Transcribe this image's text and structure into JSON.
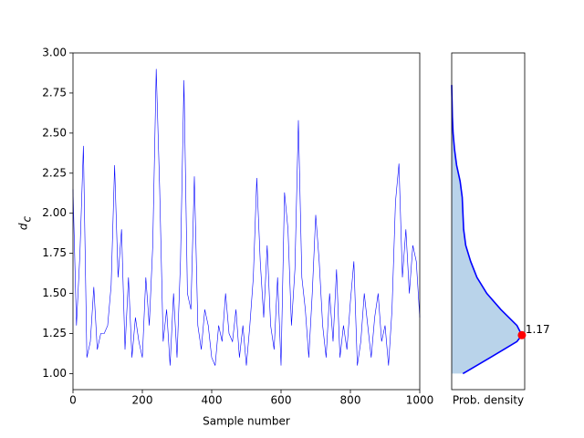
{
  "chart_data": [
    {
      "type": "line",
      "xlabel": "Sample number",
      "ylabel": "d",
      "ylabel_sub": "c",
      "color": "#0000ff",
      "xlim": [
        0,
        1000
      ],
      "xticks": [
        0,
        200,
        400,
        600,
        800,
        1000
      ],
      "ylim": [
        0.9,
        3.0
      ],
      "yticks": [
        {
          "value": 1,
          "label": "1.00"
        },
        {
          "value": 1.25,
          "label": "1.25"
        },
        {
          "value": 1.5,
          "label": "1.50"
        },
        {
          "value": 1.75,
          "label": "1.75"
        },
        {
          "value": 2,
          "label": "2.00"
        },
        {
          "value": 2.25,
          "label": "2.25"
        },
        {
          "value": 2.5,
          "label": "2.50"
        },
        {
          "value": 2.75,
          "label": "2.75"
        },
        {
          "value": 3,
          "label": "3.00"
        }
      ],
      "x": [
        0,
        10,
        20,
        30,
        40,
        50,
        60,
        70,
        80,
        90,
        100,
        110,
        120,
        130,
        140,
        150,
        160,
        170,
        180,
        190,
        200,
        210,
        220,
        230,
        240,
        250,
        260,
        270,
        280,
        290,
        300,
        310,
        320,
        330,
        340,
        350,
        360,
        370,
        380,
        390,
        400,
        410,
        420,
        430,
        440,
        450,
        460,
        470,
        480,
        490,
        500,
        510,
        520,
        530,
        540,
        550,
        560,
        570,
        580,
        590,
        600,
        610,
        620,
        630,
        640,
        650,
        660,
        670,
        680,
        690,
        700,
        710,
        720,
        730,
        740,
        750,
        760,
        770,
        780,
        790,
        800,
        810,
        820,
        830,
        840,
        850,
        860,
        870,
        880,
        890,
        900,
        910,
        920,
        930,
        940,
        950,
        960,
        970,
        980,
        990,
        1000
      ],
      "values": [
        2.15,
        1.3,
        1.75,
        2.42,
        1.1,
        1.2,
        1.54,
        1.15,
        1.25,
        1.25,
        1.3,
        1.55,
        2.3,
        1.6,
        1.9,
        1.15,
        1.6,
        1.1,
        1.35,
        1.2,
        1.1,
        1.6,
        1.3,
        1.8,
        2.9,
        2.15,
        1.2,
        1.4,
        1.05,
        1.5,
        1.1,
        1.7,
        2.83,
        1.5,
        1.4,
        2.23,
        1.3,
        1.15,
        1.4,
        1.3,
        1.1,
        1.05,
        1.3,
        1.2,
        1.5,
        1.25,
        1.2,
        1.4,
        1.1,
        1.3,
        1.05,
        1.3,
        1.6,
        2.22,
        1.7,
        1.35,
        1.8,
        1.3,
        1.15,
        1.6,
        1.05,
        2.13,
        1.9,
        1.3,
        1.65,
        2.58,
        1.6,
        1.4,
        1.1,
        1.5,
        1.99,
        1.7,
        1.3,
        1.1,
        1.5,
        1.2,
        1.65,
        1.1,
        1.3,
        1.15,
        1.45,
        1.7,
        1.05,
        1.2,
        1.5,
        1.3,
        1.1,
        1.35,
        1.5,
        1.2,
        1.3,
        1.05,
        1.4,
        2.07,
        2.31,
        1.6,
        1.9,
        1.5,
        1.8,
        1.7,
        1.35
      ]
    },
    {
      "type": "density",
      "xlabel": "Prob. density",
      "color": "#0000ff",
      "fill": "#b9d3ea",
      "xlim": [
        0,
        1.04
      ],
      "ylim": [
        0.9,
        3.0
      ],
      "y": [
        1.0,
        1.1,
        1.2,
        1.24,
        1.3,
        1.4,
        1.5,
        1.6,
        1.7,
        1.8,
        1.9,
        2.0,
        2.1,
        2.2,
        2.3,
        2.4,
        2.5,
        2.6,
        2.7,
        2.8
      ],
      "values": [
        0.16,
        0.55,
        0.93,
        1.0,
        0.93,
        0.7,
        0.5,
        0.36,
        0.27,
        0.2,
        0.17,
        0.16,
        0.15,
        0.12,
        0.07,
        0.04,
        0.02,
        0.01,
        0.005,
        0
      ],
      "peak": {
        "y": 1.24,
        "density": 1.0,
        "color": "#ff0000"
      },
      "annotation": "1.17"
    }
  ]
}
